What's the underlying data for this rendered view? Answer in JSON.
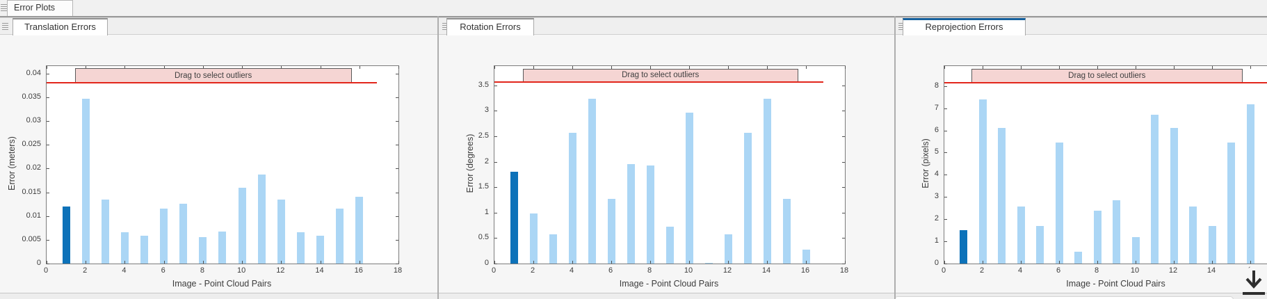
{
  "app": {
    "document_tab": "Error Plots"
  },
  "panels": [
    {
      "tab_label": "Translation Errors"
    },
    {
      "tab_label": "Rotation Errors"
    },
    {
      "tab_label": "Reprojection Errors"
    }
  ],
  "chart_data": [
    {
      "type": "bar",
      "title": "",
      "xlabel": "Image - Point Cloud Pairs",
      "ylabel": "Error (meters)",
      "categories": [
        1,
        2,
        3,
        4,
        5,
        6,
        7,
        8,
        9,
        10,
        11,
        12,
        13,
        14,
        15,
        16
      ],
      "values": [
        0.012,
        0.0347,
        0.0135,
        0.0066,
        0.0058,
        0.0116,
        0.0126,
        0.0056,
        0.0067,
        0.016,
        0.0188,
        0.0135,
        0.0066,
        0.0058,
        0.0116,
        0.014
      ],
      "highlight_category": 1,
      "xlim": [
        0,
        18
      ],
      "ylim": [
        0,
        0.0416
      ],
      "xtick_labels": [
        "0",
        "2",
        "4",
        "6",
        "8",
        "10",
        "12",
        "14",
        "16",
        "18"
      ],
      "ytick_labels": [
        "0",
        "0.005",
        "0.01",
        "0.015",
        "0.02",
        "0.025",
        "0.03",
        "0.035",
        "0.04"
      ],
      "grid": false,
      "legend": null,
      "threshold_value": 0.0381,
      "band": {
        "label": "Drag to select outliers",
        "x_start": 1.45,
        "x_end": 15.6,
        "top": 0.0411
      },
      "colors": {
        "bar": "#abd6f5",
        "highlight": "#0d72b9",
        "threshold": "#e2261b",
        "band_fill": "#f5d5d3"
      }
    },
    {
      "type": "bar",
      "title": "",
      "xlabel": "Image - Point Cloud Pairs",
      "ylabel": "Error (degrees)",
      "categories": [
        1,
        2,
        3,
        4,
        5,
        6,
        7,
        8,
        9,
        10,
        11,
        12,
        13,
        14,
        15,
        16
      ],
      "values": [
        1.8,
        0.99,
        0.57,
        2.57,
        3.24,
        1.27,
        1.96,
        1.93,
        0.72,
        2.97,
        0.02,
        0.57,
        2.57,
        3.24,
        1.27,
        0.28
      ],
      "highlight_category": 1,
      "xlim": [
        0,
        18
      ],
      "ylim": [
        0,
        3.88
      ],
      "xtick_labels": [
        "0",
        "2",
        "4",
        "6",
        "8",
        "10",
        "12",
        "14",
        "16",
        "18"
      ],
      "ytick_labels": [
        "0",
        "0.5",
        "1",
        "1.5",
        "2",
        "2.5",
        "3",
        "3.5"
      ],
      "grid": false,
      "legend": null,
      "threshold_value": 3.57,
      "band": {
        "label": "Drag to select outliers",
        "x_start": 1.45,
        "x_end": 15.6,
        "top": 3.83
      },
      "colors": {
        "bar": "#abd6f5",
        "highlight": "#0d72b9",
        "threshold": "#e2261b",
        "band_fill": "#f5d5d3"
      }
    },
    {
      "type": "bar",
      "title": "",
      "xlabel": "Image - Point Cloud Pairs",
      "ylabel": "Error (pixels)",
      "categories": [
        1,
        2,
        3,
        4,
        5,
        6,
        7,
        8,
        9,
        10,
        11,
        12,
        13,
        14,
        15,
        16
      ],
      "values": [
        1.5,
        7.4,
        6.1,
        2.57,
        1.69,
        5.46,
        0.53,
        2.37,
        2.86,
        1.2,
        6.7,
        6.1,
        2.57,
        1.69,
        5.46,
        7.17
      ],
      "highlight_category": 1,
      "xlim": [
        0,
        18
      ],
      "ylim": [
        0,
        8.9
      ],
      "xtick_labels": [
        "0",
        "2",
        "4",
        "6",
        "8",
        "10",
        "12",
        "14",
        "´"
      ],
      "ytick_labels": [
        "0",
        "1",
        "2",
        "3",
        "4",
        "5",
        "6",
        "7",
        "8"
      ],
      "grid": false,
      "legend": null,
      "threshold_value": 8.16,
      "band": {
        "label": "Drag to select outliers",
        "x_start": 1.4,
        "x_end": 15.6,
        "top": 8.78
      },
      "colors": {
        "bar": "#abd6f5",
        "highlight": "#0d72b9",
        "threshold": "#e2261b",
        "band_fill": "#f5d5d3"
      }
    }
  ]
}
